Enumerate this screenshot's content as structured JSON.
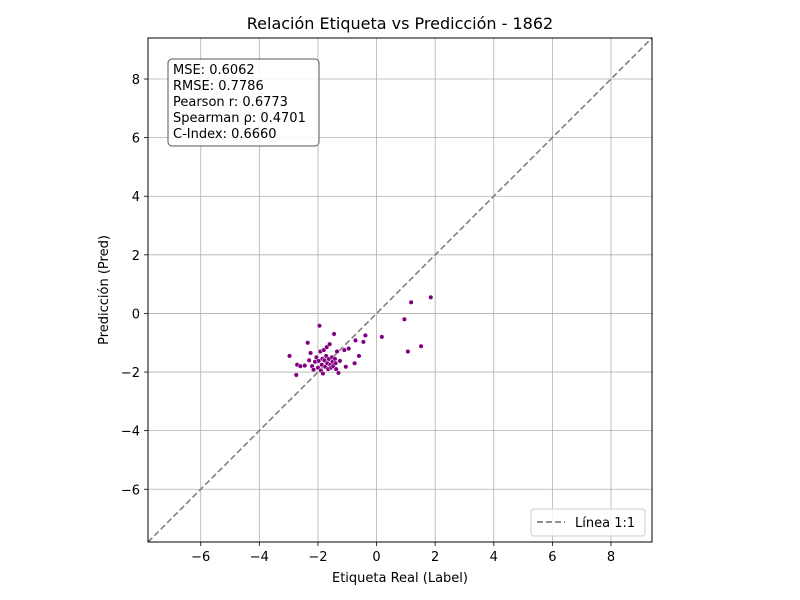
{
  "chart_data": {
    "type": "scatter",
    "title": "Relación Etiqueta vs Predicción - 1862",
    "xlabel": "Etiqueta Real (Label)",
    "ylabel": "Predicción (Pred)",
    "xlim": [
      -7.8,
      9.4
    ],
    "ylim": [
      -7.8,
      9.4
    ],
    "xticks": [
      -6,
      -4,
      -2,
      0,
      2,
      4,
      6,
      8
    ],
    "yticks": [
      -6,
      -4,
      -2,
      0,
      2,
      4,
      6,
      8
    ],
    "xtick_labels": [
      "−6",
      "−4",
      "−2",
      "0",
      "2",
      "4",
      "6",
      "8"
    ],
    "ytick_labels": [
      "−6",
      "−4",
      "−2",
      "0",
      "2",
      "4",
      "6",
      "8"
    ],
    "grid": true,
    "legend_position": "lower-right",
    "point_color": "#800080",
    "reference_line": {
      "name": "Línea 1:1",
      "color": "#808080",
      "style": "dashed"
    },
    "stats": [
      "MSE: 0.6062",
      "RMSE: 0.7786",
      "Pearson r: 0.6773",
      "Spearman ρ: 0.4701",
      "C-Index: 0.6660"
    ],
    "points": [
      {
        "x": -2.97,
        "y": -1.45
      },
      {
        "x": -2.74,
        "y": -2.1
      },
      {
        "x": -2.71,
        "y": -1.75
      },
      {
        "x": -2.6,
        "y": -1.8
      },
      {
        "x": -2.45,
        "y": -1.78
      },
      {
        "x": -2.35,
        "y": -1.0
      },
      {
        "x": -2.3,
        "y": -1.6
      },
      {
        "x": -2.25,
        "y": -1.35
      },
      {
        "x": -2.2,
        "y": -1.8
      },
      {
        "x": -2.15,
        "y": -1.92
      },
      {
        "x": -2.1,
        "y": -1.65
      },
      {
        "x": -2.05,
        "y": -1.5
      },
      {
        "x": -2.0,
        "y": -1.85
      },
      {
        "x": -1.98,
        "y": -1.62
      },
      {
        "x": -1.95,
        "y": -0.42
      },
      {
        "x": -1.92,
        "y": -1.3
      },
      {
        "x": -1.9,
        "y": -1.95
      },
      {
        "x": -1.87,
        "y": -1.75
      },
      {
        "x": -1.85,
        "y": -1.55
      },
      {
        "x": -1.83,
        "y": -2.05
      },
      {
        "x": -1.8,
        "y": -1.25
      },
      {
        "x": -1.78,
        "y": -1.6
      },
      {
        "x": -1.75,
        "y": -1.82
      },
      {
        "x": -1.72,
        "y": -1.45
      },
      {
        "x": -1.7,
        "y": -1.15
      },
      {
        "x": -1.68,
        "y": -1.7
      },
      {
        "x": -1.65,
        "y": -1.9
      },
      {
        "x": -1.63,
        "y": -1.55
      },
      {
        "x": -1.6,
        "y": -1.05
      },
      {
        "x": -1.58,
        "y": -1.75
      },
      {
        "x": -1.55,
        "y": -1.85
      },
      {
        "x": -1.52,
        "y": -1.5
      },
      {
        "x": -1.5,
        "y": -1.65
      },
      {
        "x": -1.48,
        "y": -1.8
      },
      {
        "x": -1.45,
        "y": -0.7
      },
      {
        "x": -1.42,
        "y": -1.55
      },
      {
        "x": -1.4,
        "y": -1.7
      },
      {
        "x": -1.38,
        "y": -1.9
      },
      {
        "x": -1.35,
        "y": -1.3
      },
      {
        "x": -1.3,
        "y": -2.03
      },
      {
        "x": -1.25,
        "y": -1.62
      },
      {
        "x": -1.1,
        "y": -1.25
      },
      {
        "x": -1.05,
        "y": -1.82
      },
      {
        "x": -0.95,
        "y": -1.2
      },
      {
        "x": -0.75,
        "y": -1.7
      },
      {
        "x": -0.72,
        "y": -0.92
      },
      {
        "x": -0.6,
        "y": -1.45
      },
      {
        "x": -0.45,
        "y": -0.97
      },
      {
        "x": -0.38,
        "y": -0.75
      },
      {
        "x": 0.18,
        "y": -0.8
      },
      {
        "x": 0.95,
        "y": -0.2
      },
      {
        "x": 1.07,
        "y": -1.3
      },
      {
        "x": 1.18,
        "y": 0.38
      },
      {
        "x": 1.52,
        "y": -1.12
      },
      {
        "x": 1.85,
        "y": 0.55
      }
    ]
  }
}
